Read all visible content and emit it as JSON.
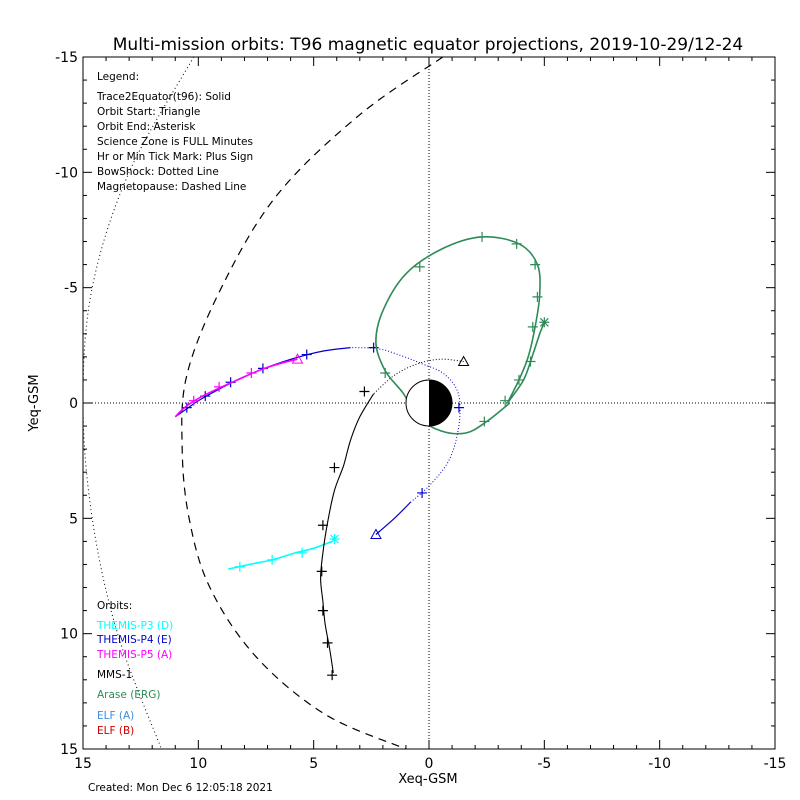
{
  "chart_data": {
    "type": "line",
    "title": "Multi-mission orbits: T96 magnetic equator projections, 2019-10-29/12-24",
    "xlabel": "Xeq-GSM",
    "ylabel": "Yeq-GSM",
    "xlim": [
      15,
      -15
    ],
    "ylim": [
      -15,
      15
    ],
    "x_ticks": [
      "15",
      "10",
      "5",
      "0",
      "-5",
      "-10",
      "-15"
    ],
    "y_ticks": [
      "-15",
      "-10",
      "-5",
      "0",
      "5",
      "10",
      "15"
    ],
    "legend_title": "Legend:",
    "legend_lines": [
      "Trace2Equator(t96): Solid",
      "Orbit Start: Triangle",
      "Orbit End: Asterisk",
      "Science Zone is FULL Minutes",
      "Hr or Min Tick Mark: Plus Sign",
      "BowShock: Dotted Line",
      "Magnetopause: Dashed Line"
    ],
    "orbits_title": "Orbits:",
    "footer": "Created: Mon Dec  6 12:05:18 2021",
    "bowshock": [
      [
        10.2,
        -15
      ],
      [
        13,
        -10
      ],
      [
        14.6,
        -5
      ],
      [
        15,
        0
      ],
      [
        14.6,
        5
      ],
      [
        13.5,
        10
      ],
      [
        11.6,
        15
      ]
    ],
    "magnetopause": [
      [
        -0.6,
        -15
      ],
      [
        3,
        -12.5
      ],
      [
        6.6,
        -9
      ],
      [
        9,
        -5
      ],
      [
        10.5,
        -1.2
      ],
      [
        10.7,
        2
      ],
      [
        10.4,
        5
      ],
      [
        9.5,
        8
      ],
      [
        7.5,
        11
      ],
      [
        4.5,
        13.5
      ],
      [
        1,
        15
      ]
    ],
    "series": [
      {
        "name": "THEMIS-P3 (D)",
        "color": "#00ffff",
        "points": [
          [
            8.7,
            7.2
          ],
          [
            7.8,
            7.0
          ],
          [
            6.8,
            6.8
          ],
          [
            5.8,
            6.5
          ],
          [
            5.0,
            6.3
          ],
          [
            4.2,
            6.0
          ]
        ],
        "ticks": [
          [
            8.2,
            7.1
          ],
          [
            6.8,
            6.8
          ],
          [
            5.5,
            6.5
          ]
        ],
        "start": null,
        "end": [
          4.1,
          5.9
        ]
      },
      {
        "name": "THEMIS-P4 (E)",
        "color": "#0000cc",
        "points": [
          [
            2.3,
            5.7
          ],
          [
            1.5,
            5
          ],
          [
            0.8,
            4.3
          ],
          [
            0,
            3.6
          ],
          [
            -0.8,
            2.6
          ],
          [
            -1.2,
            1.5
          ],
          [
            -1.35,
            0.3
          ],
          [
            -1.2,
            -0.6
          ],
          [
            -0.6,
            -1.3
          ],
          [
            0.3,
            -1.7
          ],
          [
            1.2,
            -2.05
          ],
          [
            2.2,
            -2.35
          ],
          [
            3.4,
            -2.4
          ],
          [
            4.6,
            -2.25
          ],
          [
            5.8,
            -1.95
          ],
          [
            7,
            -1.55
          ],
          [
            8.1,
            -1.1
          ],
          [
            9.1,
            -0.6
          ],
          [
            10,
            -0.1
          ],
          [
            10.5,
            0.25
          ],
          [
            11,
            0.6
          ]
        ],
        "ticks": [
          [
            0.3,
            3.9
          ],
          [
            -1.3,
            0.2
          ],
          [
            2.4,
            -2.4
          ],
          [
            5.3,
            -2.1
          ],
          [
            7.2,
            -1.5
          ],
          [
            8.6,
            -0.9
          ],
          [
            9.7,
            -0.3
          ],
          [
            10.5,
            0.2
          ]
        ],
        "start": [
          2.3,
          5.7
        ],
        "end": null
      },
      {
        "name": "THEMIS-P5 (A)",
        "color": "#ff00ff",
        "points": [
          [
            5.7,
            -1.9
          ],
          [
            6.5,
            -1.7
          ],
          [
            7.4,
            -1.4
          ],
          [
            8.3,
            -1
          ],
          [
            9.2,
            -0.6
          ],
          [
            10,
            -0.2
          ],
          [
            10.6,
            0.2
          ],
          [
            11,
            0.6
          ]
        ],
        "ticks": [
          [
            7.7,
            -1.3
          ],
          [
            9.1,
            -0.7
          ],
          [
            10.2,
            -0.1
          ]
        ],
        "start": [
          5.7,
          -1.9
        ],
        "end": null
      },
      {
        "name": "MMS-1",
        "color": "#000000",
        "points": [
          [
            -1.5,
            -1.8
          ],
          [
            -0.5,
            -1.9
          ],
          [
            0.5,
            -1.7
          ],
          [
            1.5,
            -1.2
          ],
          [
            2.4,
            -0.4
          ],
          [
            3,
            0.6
          ],
          [
            3.4,
            1.6
          ],
          [
            3.7,
            2.7
          ],
          [
            4.1,
            3.8
          ],
          [
            4.4,
            5.2
          ],
          [
            4.6,
            6.5
          ],
          [
            4.7,
            7.6
          ],
          [
            4.6,
            8.6
          ],
          [
            4.5,
            9.6
          ],
          [
            4.3,
            10.7
          ],
          [
            4.15,
            11.7
          ]
        ],
        "ticks": [
          [
            2.8,
            -0.5
          ],
          [
            4.1,
            2.8
          ],
          [
            4.6,
            5.3
          ],
          [
            4.65,
            7.3
          ],
          [
            4.6,
            9.0
          ],
          [
            4.4,
            10.4
          ],
          [
            4.2,
            11.8
          ]
        ],
        "start": [
          -1.5,
          -1.8
        ],
        "end": null
      },
      {
        "name": "Arase (ERG)",
        "color": "#2e8b57",
        "points": [
          [
            -3.5,
            0
          ],
          [
            -2.5,
            0.8
          ],
          [
            -1.6,
            1.3
          ],
          [
            -0.5,
            1.2
          ],
          [
            0.5,
            0.6
          ],
          [
            1.1,
            -0.4
          ],
          [
            1.9,
            -1.4
          ],
          [
            2.3,
            -2.6
          ],
          [
            2,
            -4
          ],
          [
            1,
            -5.6
          ],
          [
            -0.6,
            -6.7
          ],
          [
            -2.3,
            -7.2
          ],
          [
            -3.9,
            -6.9
          ],
          [
            -4.7,
            -6
          ],
          [
            -4.8,
            -4.7
          ],
          [
            -4.6,
            -3.3
          ],
          [
            -4.3,
            -2
          ],
          [
            -3.9,
            -1
          ],
          [
            -3.4,
            0
          ]
        ],
        "points2": [
          [
            -3.4,
            0
          ],
          [
            -4.1,
            -1
          ],
          [
            -4.5,
            -2.1
          ],
          [
            -4.8,
            -3
          ],
          [
            -5.0,
            -3.5
          ]
        ],
        "ticks": [
          [
            -2.4,
            0.8
          ],
          [
            0.5,
            0.5
          ],
          [
            1.9,
            -1.3
          ],
          [
            0.4,
            -5.9
          ],
          [
            -2.3,
            -7.2
          ],
          [
            -3.8,
            -6.9
          ],
          [
            -4.6,
            -6
          ],
          [
            -4.7,
            -4.6
          ],
          [
            -4.5,
            -3.3
          ],
          [
            -4.4,
            -1.8
          ],
          [
            -3.9,
            -1
          ],
          [
            -3.3,
            -0.1
          ]
        ],
        "start": null,
        "end": [
          -5.0,
          -3.5
        ]
      },
      {
        "name": "ELF (A)",
        "color": "#3c8cdc",
        "points": [],
        "ticks": [],
        "start": null,
        "end": null
      },
      {
        "name": "ELF (B)",
        "color": "#cc0000",
        "points": [],
        "ticks": [],
        "start": null,
        "end": null
      }
    ],
    "t_start_marker": [
      -1.5,
      -1.8
    ]
  }
}
